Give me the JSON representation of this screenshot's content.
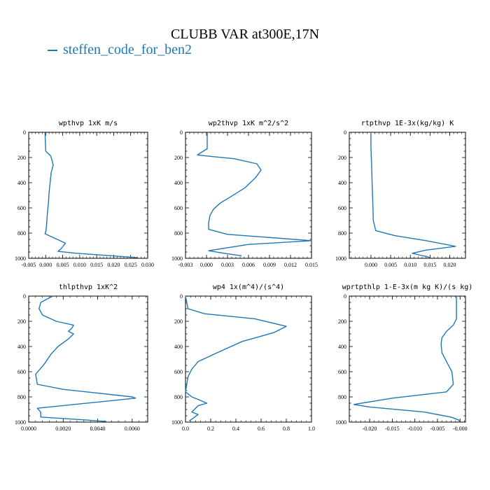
{
  "title": "CLUBB VAR at300E,17N",
  "legend": [
    {
      "label": "steffen_code_for_ben2",
      "color": "#1f77b4"
    }
  ],
  "chart_data": [
    {
      "type": "line",
      "title": "wpthvp  1xK m/s",
      "xlim": [
        -0.005,
        0.03
      ],
      "xticks": [
        -0.005,
        0.0,
        0.005,
        0.01,
        0.015,
        0.02,
        0.025,
        0.03
      ],
      "xticklabels": [
        "-0.005",
        "0.000",
        "0.005",
        "0.010",
        "0.015",
        "0.020",
        "0.025",
        "0.030"
      ],
      "ylim": [
        1000,
        0
      ],
      "yticks": [
        0,
        200,
        400,
        600,
        800,
        1000
      ],
      "series": [
        {
          "color": "#1f77b4",
          "x": [
            -0.0002,
            0.0,
            0.0014,
            0.0018,
            0.0022,
            0.0016,
            0.0013,
            0.001,
            0.0008,
            0.0005,
            0.0003,
            0.0001,
            -0.0002,
            0.001,
            0.0058,
            0.0045,
            0.0036,
            0.009,
            0.027
          ],
          "y": [
            0,
            150,
            185,
            215,
            260,
            320,
            400,
            480,
            560,
            640,
            720,
            780,
            805,
            820,
            880,
            925,
            945,
            960,
            995
          ]
        }
      ]
    },
    {
      "type": "line",
      "title": "wp2thvp   1xK m^2/s^2",
      "xlim": [
        -0.003,
        0.015
      ],
      "xticks": [
        -0.003,
        0.0,
        0.003,
        0.006,
        0.009,
        0.012,
        0.015
      ],
      "xticklabels": [
        "-0.003",
        "0.000",
        "0.003",
        "0.006",
        "0.009",
        "0.012",
        "0.015"
      ],
      "ylim": [
        1000,
        0
      ],
      "yticks": [
        0,
        200,
        400,
        600,
        800,
        1000
      ],
      "series": [
        {
          "color": "#1f77b4",
          "x": [
            0.0001,
            0.0001,
            -0.0013,
            0.004,
            0.0072,
            0.0078,
            0.007,
            0.0055,
            0.0035,
            0.002,
            0.001,
            0.0005,
            0.0003,
            0.0003,
            0.003,
            0.015,
            0.006,
            0.0003,
            0.0025,
            0.005
          ],
          "y": [
            0,
            130,
            180,
            210,
            250,
            300,
            360,
            440,
            510,
            560,
            610,
            660,
            720,
            770,
            810,
            860,
            890,
            940,
            960,
            980
          ]
        }
      ]
    },
    {
      "type": "line",
      "title": "rtpthvp   1E-3x(kg/kg) K",
      "xlim": [
        -0.0055,
        0.024
      ],
      "xticks": [
        0.0,
        0.005,
        0.01,
        0.015,
        0.02
      ],
      "xticklabels": [
        "0.000",
        "0.005",
        "0.010",
        "0.015",
        "0.020"
      ],
      "ylim": [
        1000,
        0
      ],
      "yticks": [
        0,
        200,
        400,
        600,
        800,
        1000
      ],
      "series": [
        {
          "color": "#1f77b4",
          "x": [
            0.0,
            0.0,
            0.0001,
            0.0002,
            0.0003,
            0.0004,
            0.0005,
            0.0006,
            0.0012,
            0.006,
            0.014,
            0.0215,
            0.014,
            0.0105,
            0.0125,
            0.014,
            0.015
          ],
          "y": [
            0,
            120,
            200,
            300,
            400,
            500,
            600,
            700,
            780,
            820,
            860,
            905,
            935,
            960,
            975,
            985,
            995
          ]
        }
      ]
    },
    {
      "type": "line",
      "title": "thlpthvp   1xK^2",
      "xlim": [
        0.0,
        0.0069
      ],
      "xticks": [
        0.0,
        0.002,
        0.004,
        0.006
      ],
      "xticklabels": [
        "0.0000",
        "0.0020",
        "0.0040",
        "0.0060"
      ],
      "ylim": [
        1000,
        0
      ],
      "yticks": [
        0,
        200,
        400,
        600,
        800,
        1000
      ],
      "series": [
        {
          "color": "#1f77b4",
          "x": [
            0.0014,
            0.0007,
            0.0006,
            0.0008,
            0.0016,
            0.0026,
            0.0025,
            0.0023,
            0.0026,
            0.0023,
            0.0017,
            0.0013,
            0.0009,
            0.0004,
            0.0005,
            0.002,
            0.006,
            0.0062,
            0.0005,
            0.0007,
            0.0007,
            0.003,
            0.0045
          ],
          "y": [
            0,
            50,
            100,
            150,
            200,
            230,
            255,
            280,
            300,
            340,
            400,
            460,
            540,
            620,
            700,
            740,
            800,
            810,
            890,
            920,
            960,
            980,
            995
          ]
        }
      ]
    },
    {
      "type": "line",
      "title": "wp4   1x(m^4)/(s^4)",
      "xlim": [
        0.0,
        1.0
      ],
      "xticks": [
        0.0,
        0.2,
        0.4,
        0.6,
        0.8,
        1.0
      ],
      "xticklabels": [
        "0.0",
        "0.2",
        "0.4",
        "0.6",
        "0.8",
        "1.0"
      ],
      "ylim": [
        1000,
        0
      ],
      "yticks": [
        0,
        200,
        400,
        600,
        800,
        1000
      ],
      "series": [
        {
          "color": "#1f77b4",
          "x": [
            0.0,
            0.02,
            0.15,
            0.55,
            0.8,
            0.7,
            0.45,
            0.25,
            0.1,
            0.05,
            0.02,
            0.01,
            0.0,
            0.05,
            0.1,
            0.17,
            0.1,
            0.05,
            0.1,
            0.06,
            0.03
          ],
          "y": [
            0,
            100,
            140,
            180,
            240,
            290,
            360,
            450,
            520,
            580,
            640,
            700,
            760,
            800,
            820,
            850,
            870,
            920,
            940,
            970,
            990
          ]
        }
      ]
    },
    {
      "type": "line",
      "title": "wprtpthlp   1-E-3x(m kg K)/(s kg)",
      "xlim": [
        -0.0245,
        0.0012
      ],
      "xticks": [
        -0.02,
        -0.015,
        -0.01,
        -0.005,
        -0.0
      ],
      "xticklabels": [
        "-0.020",
        "-0.015",
        "-0.010",
        "-0.005",
        "-0.000"
      ],
      "ylim": [
        1000,
        0
      ],
      "yticks": [
        0,
        200,
        400,
        600,
        800,
        1000
      ],
      "series": [
        {
          "color": "#1f77b4",
          "x": [
            -0.0008,
            -0.0008,
            -0.0008,
            -0.0015,
            -0.003,
            -0.004,
            -0.0042,
            -0.004,
            -0.003,
            -0.0018,
            -0.0015,
            -0.003,
            -0.015,
            -0.0235,
            -0.02,
            -0.008,
            -0.002,
            -0.0002,
            -0.0002
          ],
          "y": [
            0,
            100,
            180,
            230,
            280,
            330,
            380,
            450,
            520,
            600,
            700,
            760,
            810,
            860,
            880,
            920,
            960,
            985,
            1000
          ]
        }
      ]
    }
  ]
}
